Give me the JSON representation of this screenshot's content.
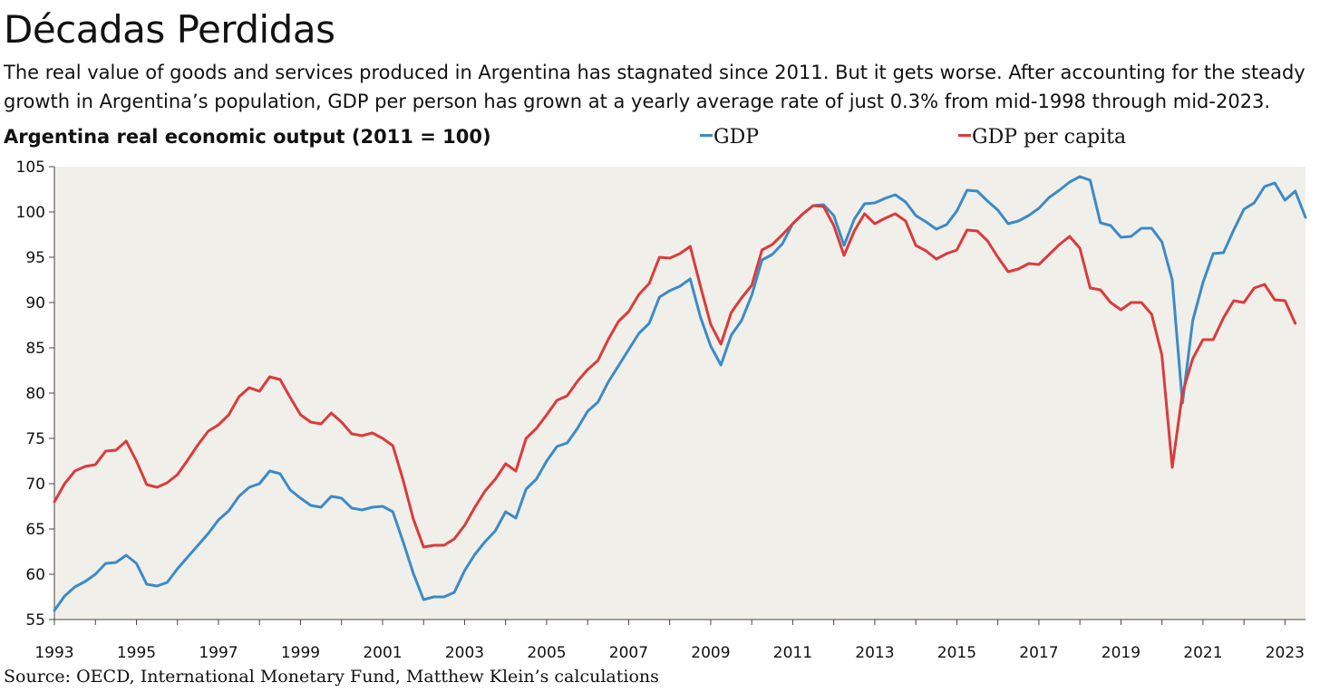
{
  "title": "Décadas Perdidas",
  "subtitle": "The real value of goods and services produced in Argentina has stagnated since 2011. But it gets worse. After accounting for the steady growth in Argentina’s population, GDP per person has grown at a yearly average rate of just 0.3% from mid-1998 through mid-2023.",
  "source": "Source: OECD, International Monetary Fund, Matthew Klein’s calculations",
  "colors": {
    "gdp": "#3b8bc8",
    "gdp_per_capita": "#db3b3b",
    "plot_bg": "#f1efea"
  },
  "chart_data": {
    "type": "line",
    "title": "Argentina real economic output (2011 = 100)",
    "xlabel": "",
    "ylabel": "",
    "ylim": [
      55,
      105
    ],
    "yticks": [
      55,
      60,
      65,
      70,
      75,
      80,
      85,
      90,
      95,
      100,
      105
    ],
    "xlim": [
      1993.0,
      2023.5
    ],
    "xticks": [
      "1993",
      "1995",
      "1997",
      "1999",
      "2001",
      "2003",
      "2005",
      "2007",
      "2009",
      "2011",
      "2013",
      "2015",
      "2017",
      "2019",
      "2021",
      "2023"
    ],
    "frequency": "quarterly",
    "start": 1993.0,
    "step": 0.25,
    "series": [
      {
        "name": "GDP",
        "color": "#3b8bc8",
        "values": [
          56.0,
          57.6,
          58.6,
          59.2,
          60.0,
          61.2,
          61.3,
          62.1,
          61.2,
          58.9,
          58.7,
          59.1,
          60.6,
          61.9,
          63.2,
          64.5,
          66.0,
          67.0,
          68.6,
          69.6,
          70.0,
          71.4,
          71.1,
          69.3,
          68.4,
          67.6,
          67.4,
          68.6,
          68.4,
          67.3,
          67.1,
          67.4,
          67.5,
          66.9,
          63.6,
          60.1,
          57.2,
          57.5,
          57.5,
          58.0,
          60.4,
          62.2,
          63.6,
          64.8,
          66.9,
          66.2,
          69.4,
          70.5,
          72.5,
          74.1,
          74.5,
          76.1,
          78.0,
          79.0,
          81.2,
          83.0,
          84.8,
          86.6,
          87.7,
          90.6,
          91.3,
          91.8,
          92.6,
          88.4,
          85.2,
          83.1,
          86.4,
          88.0,
          90.8,
          94.7,
          95.3,
          96.5,
          98.7,
          99.8,
          100.7,
          100.8,
          99.6,
          96.3,
          99.2,
          100.9,
          101.0,
          101.5,
          101.9,
          101.1,
          99.6,
          98.9,
          98.1,
          98.6,
          100.1,
          102.4,
          102.3,
          101.2,
          100.2,
          98.7,
          99.0,
          99.6,
          100.4,
          101.6,
          102.4,
          103.3,
          103.9,
          103.5,
          98.8,
          98.5,
          97.2,
          97.3,
          98.2,
          98.2,
          96.7,
          92.5,
          78.9,
          88.0,
          92.2,
          95.4,
          95.5,
          98.0,
          100.3,
          101.0,
          102.8,
          103.2,
          101.3,
          102.3,
          99.4
        ]
      },
      {
        "name": "GDP per capita",
        "color": "#db3b3b",
        "values": [
          68.0,
          70.0,
          71.4,
          71.9,
          72.1,
          73.6,
          73.7,
          74.7,
          72.5,
          69.9,
          69.6,
          70.1,
          71.0,
          72.6,
          74.3,
          75.8,
          76.5,
          77.6,
          79.6,
          80.6,
          80.2,
          81.8,
          81.5,
          79.5,
          77.6,
          76.8,
          76.6,
          77.8,
          76.8,
          75.5,
          75.3,
          75.6,
          75.0,
          74.2,
          70.4,
          66.1,
          63.0,
          63.2,
          63.2,
          63.9,
          65.4,
          67.4,
          69.2,
          70.5,
          72.2,
          71.4,
          75.0,
          76.1,
          77.6,
          79.2,
          79.7,
          81.3,
          82.6,
          83.6,
          85.9,
          87.9,
          89.0,
          90.9,
          92.1,
          95.0,
          94.9,
          95.4,
          96.2,
          91.8,
          87.6,
          85.4,
          88.9,
          90.5,
          91.9,
          95.8,
          96.4,
          97.5,
          98.7,
          99.8,
          100.7,
          100.6,
          98.5,
          95.2,
          97.9,
          99.8,
          98.7,
          99.3,
          99.8,
          99.0,
          96.3,
          95.7,
          94.8,
          95.4,
          95.8,
          98.0,
          97.9,
          96.8,
          95.0,
          93.4,
          93.7,
          94.3,
          94.2,
          95.3,
          96.4,
          97.3,
          96.0,
          91.6,
          91.4,
          90.0,
          89.2,
          90.0,
          90.0,
          88.7,
          84.2,
          71.8,
          80.0,
          83.8,
          85.9,
          85.9,
          88.3,
          90.2,
          90.0,
          91.6,
          92.0,
          90.3,
          90.2,
          87.7
        ]
      }
    ]
  }
}
